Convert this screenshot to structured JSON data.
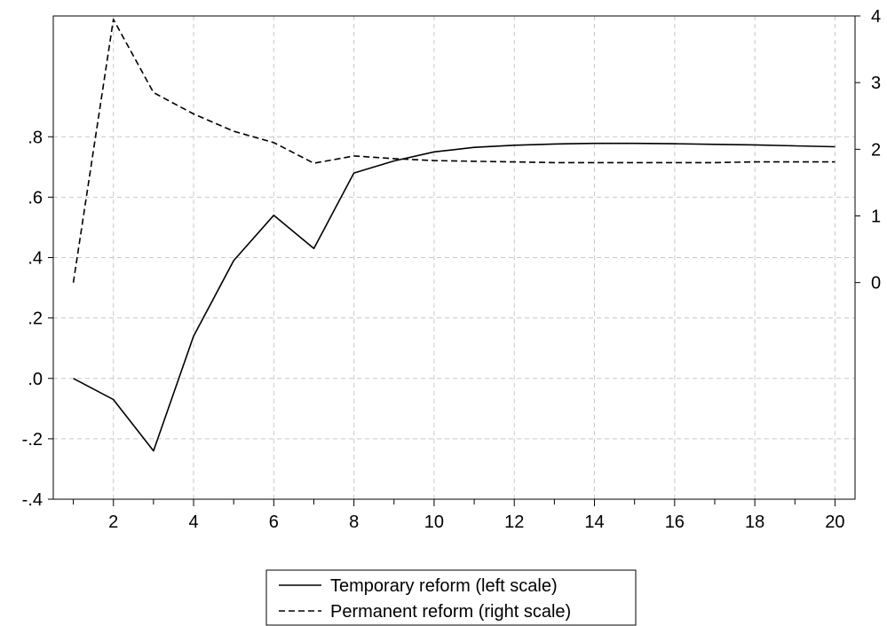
{
  "chart_data": {
    "type": "line",
    "x": [
      1,
      2,
      3,
      4,
      5,
      6,
      7,
      8,
      9,
      10,
      11,
      12,
      13,
      14,
      15,
      16,
      17,
      18,
      19,
      20
    ],
    "x_ticks": [
      2,
      4,
      6,
      8,
      10,
      12,
      14,
      16,
      18,
      20
    ],
    "xlim": [
      0.5,
      20.5
    ],
    "left_axis": {
      "ylim": [
        -0.4,
        1.2
      ],
      "ticks": [
        -0.4,
        -0.2,
        0.0,
        0.2,
        0.4,
        0.6,
        0.8
      ],
      "tick_labels": [
        "-.4",
        "-.2",
        ".0",
        ".2",
        ".4",
        ".6",
        ".8"
      ]
    },
    "right_axis": {
      "ylim": [
        -3.25,
        4.0
      ],
      "ticks": [
        0,
        1,
        2,
        3,
        4
      ],
      "tick_labels": [
        "0",
        "1",
        "2",
        "3",
        "4"
      ]
    },
    "grid": true,
    "legend_position": "bottom-center",
    "series": [
      {
        "name": "Temporary reform (left scale)",
        "axis": "left",
        "style": "solid",
        "values": [
          0.0,
          -0.07,
          -0.24,
          0.14,
          0.39,
          0.54,
          0.43,
          0.68,
          0.72,
          0.75,
          0.765,
          0.772,
          0.776,
          0.778,
          0.778,
          0.777,
          0.775,
          0.773,
          0.77,
          0.767
        ]
      },
      {
        "name": "Permanent reform (right scale)",
        "axis": "right",
        "style": "dashed",
        "values": [
          0.0,
          3.95,
          2.85,
          2.53,
          2.27,
          2.1,
          1.79,
          1.9,
          1.86,
          1.83,
          1.82,
          1.81,
          1.8,
          1.8,
          1.8,
          1.8,
          1.8,
          1.81,
          1.81,
          1.81
        ]
      }
    ]
  }
}
